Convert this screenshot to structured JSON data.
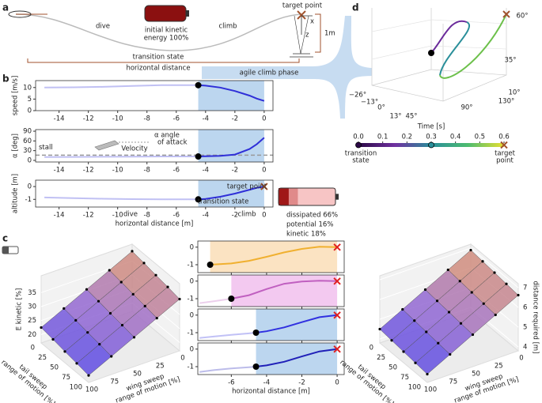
{
  "chart_data": [
    {
      "type": "line",
      "ylabel": "speed [m/s]",
      "x": [
        -15,
        -13,
        -11,
        -9,
        -7,
        -5,
        -4.5,
        -4,
        -3,
        -2,
        -1,
        -0.5,
        0
      ],
      "series": [
        {
          "color": "#2f2fd8",
          "values": [
            10,
            10.1,
            10.3,
            10.7,
            11,
            11,
            11,
            10.8,
            10,
            8.5,
            6.5,
            5.2,
            4.2
          ]
        }
      ],
      "xlim": [
        -15.6,
        0.6
      ],
      "xticks": [
        -14,
        -12,
        -10,
        -8,
        -6,
        -4,
        -2,
        0
      ],
      "ylim": [
        0,
        13
      ],
      "yticks": [
        0,
        5,
        10
      ],
      "shade": [
        -4.5,
        0
      ],
      "shade_color": "#bcd6ef",
      "point": {
        "x": -4.5,
        "y": 11
      }
    },
    {
      "type": "line",
      "ylabel": "α [deg]",
      "x": [
        -15,
        -13,
        -11,
        -9,
        -7,
        -5,
        -4.5,
        -4,
        -3,
        -2,
        -1,
        -0.5,
        0
      ],
      "series": [
        {
          "color": "#2f2fd8",
          "values": [
            10,
            10.5,
            11,
            11.5,
            12,
            12,
            12,
            12.5,
            14,
            18,
            35,
            50,
            70
          ]
        }
      ],
      "xlim": [
        -15.6,
        0.6
      ],
      "xticks": [
        -14,
        -12,
        -10,
        -8,
        -6,
        -4,
        -2,
        0
      ],
      "ylim": [
        -5,
        95
      ],
      "yticks": [
        0,
        30,
        60,
        90
      ],
      "shade": [
        -4.5,
        0
      ],
      "shade_color": "#bcd6ef",
      "point": {
        "x": -4.5,
        "y": 12
      },
      "stall": {
        "value": 16,
        "label": "stall"
      }
    },
    {
      "type": "line",
      "ylabel": "altitude [m]",
      "xlabel": "horizontal distance [m]",
      "x": [
        -15,
        -13,
        -11,
        -9,
        -7,
        -5,
        -4.5,
        -4,
        -3,
        -2,
        -1,
        -0.5,
        0
      ],
      "series": [
        {
          "color": "#2f2fd8",
          "values": [
            -0.85,
            -0.9,
            -0.95,
            -0.98,
            -1,
            -1,
            -1,
            -0.97,
            -0.8,
            -0.55,
            -0.25,
            -0.1,
            0
          ]
        }
      ],
      "xlim": [
        -15.6,
        0.6
      ],
      "xticks": [
        -14,
        -12,
        -10,
        -8,
        -6,
        -4,
        -2,
        0
      ],
      "ylim": [
        -1.6,
        0.5
      ],
      "yticks": [
        -1,
        0
      ],
      "shade": [
        -4.5,
        0
      ],
      "shade_color": "#bcd6ef",
      "point": {
        "x": -4.5,
        "y": -1
      },
      "target": {
        "x": 0,
        "y": 0
      }
    },
    {
      "type": "battery",
      "values": [
        18,
        16,
        66
      ],
      "value_labels": [
        "kinetic 18%",
        "potential  16%",
        "dissipated  66%"
      ],
      "colors": [
        "#a01818",
        "#e08a8a",
        "#f7c5c5"
      ]
    },
    {
      "type": "line",
      "x": [
        -7.2,
        -6,
        -5,
        -4,
        -3,
        -2,
        -1,
        0
      ],
      "series": [
        {
          "color": "#f0b030",
          "values": [
            -1,
            -0.93,
            -0.78,
            -0.55,
            -0.3,
            -0.1,
            0.02,
            0
          ]
        }
      ],
      "xlim": [
        -7.9,
        0.4
      ],
      "xticks": [
        -6,
        -4,
        -2,
        0
      ],
      "ylim": [
        -1.45,
        0.35
      ],
      "yticks": [
        -1,
        0
      ],
      "shade": [
        -7.2,
        0
      ],
      "shade_color": "#fbe3c2",
      "point": {
        "x": -7.2,
        "y": -1
      },
      "target": {
        "x": 0,
        "y": 0
      }
    },
    {
      "type": "line",
      "x": [
        -7.8,
        -7,
        -6,
        -5,
        -4,
        -3,
        -2,
        -1,
        0
      ],
      "series": [
        {
          "color": "#c060c0",
          "values": [
            -1.25,
            -1.15,
            -1,
            -0.8,
            -0.45,
            -0.15,
            -0.02,
            0.02,
            0
          ]
        }
      ],
      "xlim": [
        -7.9,
        0.4
      ],
      "xticks": [
        -6,
        -4,
        -2,
        0
      ],
      "ylim": [
        -1.45,
        0.35
      ],
      "yticks": [
        -1,
        0
      ],
      "shade": [
        -6,
        0
      ],
      "shade_color": "#f3c9f0",
      "point": {
        "x": -6,
        "y": -1
      },
      "target": {
        "x": 0,
        "y": 0
      }
    },
    {
      "type": "line",
      "x": [
        -7.8,
        -7,
        -6,
        -5,
        -4.6,
        -4,
        -3,
        -2,
        -1,
        0
      ],
      "series": [
        {
          "color": "#3030e0",
          "values": [
            -1.3,
            -1.22,
            -1.12,
            -1.04,
            -1,
            -0.92,
            -0.7,
            -0.4,
            -0.12,
            0
          ]
        }
      ],
      "xlim": [
        -7.9,
        0.4
      ],
      "xticks": [
        -6,
        -4,
        -2,
        0
      ],
      "ylim": [
        -1.45,
        0.35
      ],
      "yticks": [
        -1,
        0
      ],
      "shade": [
        -4.6,
        0
      ],
      "shade_color": "#bcd6ef",
      "point": {
        "x": -4.6,
        "y": -1
      },
      "target": {
        "x": 0,
        "y": 0
      }
    },
    {
      "type": "line",
      "xlabel": "horizontal distance [m]",
      "x": [
        -7.8,
        -7,
        -6,
        -5,
        -4.6,
        -4,
        -3,
        -2,
        -1,
        0
      ],
      "series": [
        {
          "color": "#2020b8",
          "values": [
            -1.3,
            -1.2,
            -1.1,
            -1.03,
            -1,
            -0.93,
            -0.72,
            -0.42,
            -0.13,
            0
          ]
        }
      ],
      "xlim": [
        -7.9,
        0.4
      ],
      "xticks": [
        -6,
        -4,
        -2,
        0
      ],
      "ylim": [
        -1.45,
        0.35
      ],
      "yticks": [
        -1,
        0
      ],
      "shade": [
        -4.6,
        0
      ],
      "shade_color": "#bcd6ef",
      "point": {
        "x": -4.6,
        "y": -1
      },
      "target": {
        "x": 0,
        "y": 0
      }
    },
    {
      "type": "surface",
      "zlabel": "E kinetic [%]",
      "xlabel": [
        "wing sweep",
        "range of motion [%]"
      ],
      "ylabel": [
        "tail sweep",
        "range of motion [%]"
      ],
      "x": [
        0,
        25,
        50,
        75,
        100
      ],
      "y": [
        0,
        25,
        50,
        75,
        100
      ],
      "xticks": [
        0,
        25,
        50,
        75,
        100
      ],
      "yticks": [
        0,
        25,
        50,
        75,
        100
      ],
      "zlim": [
        17,
        41
      ],
      "zticks": [
        20,
        25,
        30,
        35
      ],
      "z": [
        [
          38.5,
          34.5,
          30.5,
          26.5,
          22.5
        ],
        [
          37.8,
          33.8,
          29.8,
          25.8,
          21.8
        ],
        [
          37,
          33,
          29,
          25,
          21
        ],
        [
          36.3,
          32.3,
          28.3,
          24.3,
          20.3
        ],
        [
          35.5,
          31.5,
          27.5,
          23.5,
          19.5
        ]
      ],
      "colormap": [
        "#3a3af0",
        "#9b6ccf",
        "#f0a050"
      ],
      "zaxis": "left"
    },
    {
      "type": "surface",
      "zlabel": "distance required [m]",
      "xlabel": [
        "wing sweep",
        "range of motion [%]"
      ],
      "ylabel": [
        "tail sweep",
        "range of motion [%]"
      ],
      "x": [
        0,
        25,
        50,
        75,
        100
      ],
      "y": [
        0,
        25,
        50,
        75,
        100
      ],
      "xticks": [
        0,
        25,
        50,
        75,
        100
      ],
      "yticks": [
        0,
        25,
        50,
        75,
        100
      ],
      "zlim": [
        3.8,
        7.2
      ],
      "zticks": [
        4,
        5,
        6,
        7
      ],
      "z": [
        [
          6.9,
          6.3,
          5.7,
          5.1,
          4.5
        ],
        [
          6.83,
          6.23,
          5.63,
          5.03,
          4.43
        ],
        [
          6.76,
          6.16,
          5.56,
          4.96,
          4.36
        ],
        [
          6.69,
          6.09,
          5.49,
          4.89,
          4.29
        ],
        [
          6.62,
          6.02,
          5.42,
          4.82,
          4.22
        ]
      ],
      "colormap": [
        "#3a3af0",
        "#9b6ccf",
        "#f0a050"
      ],
      "zaxis": "right"
    },
    {
      "type": "colorbar",
      "title": "Time [s]",
      "xlim": [
        0,
        0.6
      ],
      "xticks": [
        {
          "value": 0,
          "label": "0.0"
        },
        {
          "value": 0.1,
          "label": "0.1"
        },
        {
          "value": 0.2,
          "label": "0.2"
        },
        {
          "value": 0.3,
          "label": "0.3"
        },
        {
          "value": 0.4,
          "label": "0.4"
        },
        {
          "value": 0.5,
          "label": "0.5"
        },
        {
          "value": 0.6,
          "label": "0.6"
        }
      ],
      "colormap": [
        "#2a0845",
        "#7030a0",
        "#2a8f9a",
        "#4cbb70",
        "#e8e030"
      ],
      "markers": [
        0,
        0.3,
        0.6
      ]
    }
  ],
  "figure": {
    "panels": [
      "a",
      "b",
      "c",
      "d"
    ],
    "a": {
      "dive": "dive",
      "climb": "climb",
      "energy": [
        "initial kinetic",
        "energy 100%"
      ],
      "target": "target point",
      "z": "z",
      "x": "x",
      "height": "1m",
      "transition": "transition state",
      "distance": "horizontal distance"
    },
    "agile": "agile climb phase",
    "b": {
      "velocity": "Velocity",
      "alpha": [
        "α  angle",
        "of attack"
      ],
      "dive": "dive",
      "climb": "climb",
      "transition": "transition state",
      "target": "target point"
    },
    "d": {
      "angles": [
        "60°",
        "35°",
        "10°",
        "130°",
        "90°",
        "45°",
        "13°",
        "0°",
        "−13°",
        "−26°"
      ],
      "transition": [
        "transition",
        "state"
      ],
      "target": [
        "target",
        "point"
      ]
    }
  }
}
